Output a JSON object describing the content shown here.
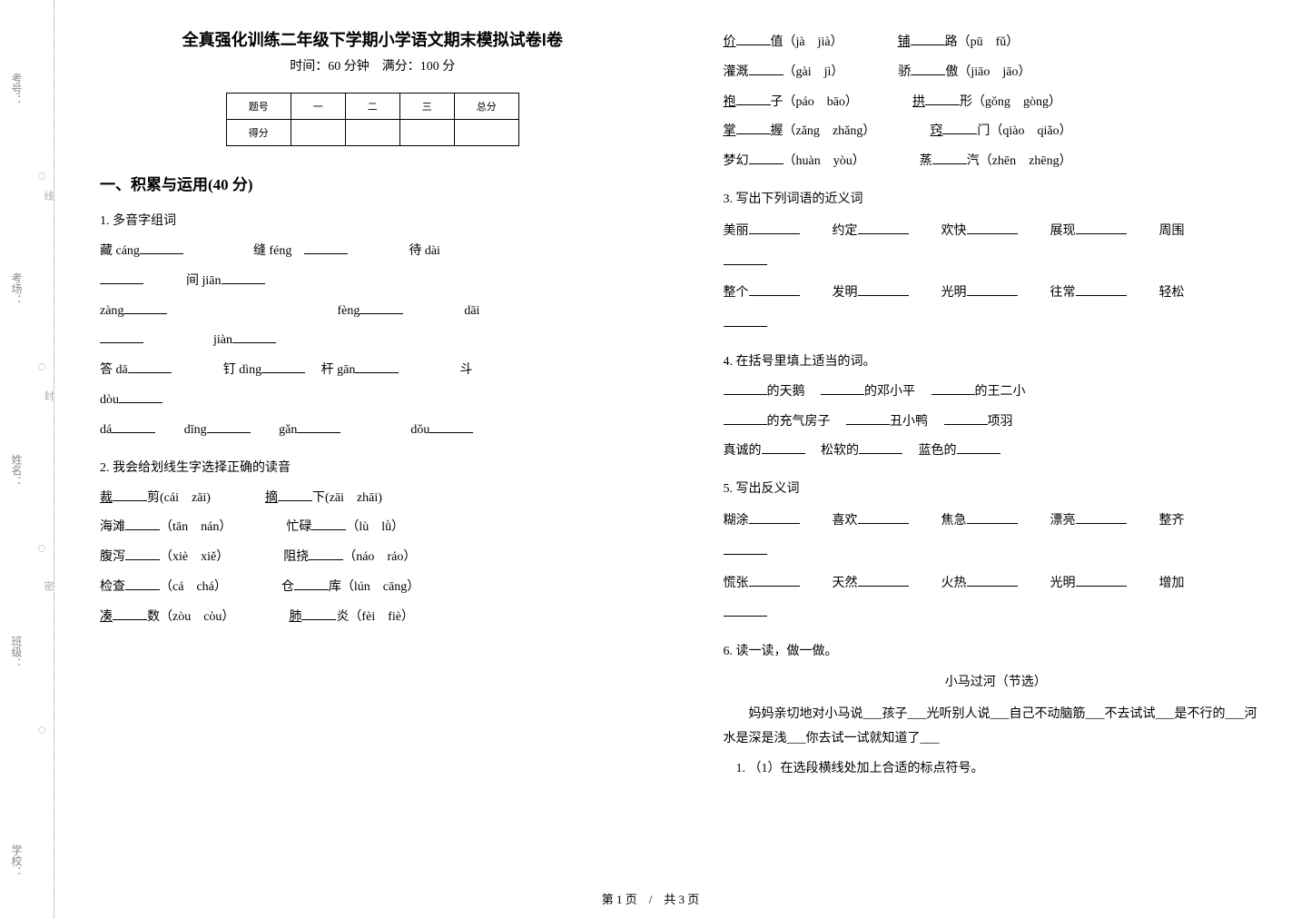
{
  "gutter": {
    "labels": [
      "考号：",
      "考场：",
      "姓名：",
      "班级：",
      "学校："
    ],
    "line_segments": [
      "线",
      "封",
      "密"
    ]
  },
  "header": {
    "title": "全真强化训练二年级下学期小学语文期末模拟试卷Ⅰ卷",
    "subtitle": "时间：60 分钟　满分：100 分"
  },
  "score_table": {
    "headers": [
      "题号",
      "一",
      "二",
      "三",
      "总分"
    ],
    "row2": "得分"
  },
  "section1": {
    "heading": "一、积累与运用(40 分)",
    "q1": {
      "label": "1. 多音字组词",
      "rows": [
        [
          "藏 cáng",
          "缝 féng",
          "待 dài"
        ],
        [
          "间 jiān"
        ],
        [
          "zàng",
          "fèng",
          "dāi"
        ],
        [
          "jiàn"
        ],
        [
          "答 dā",
          "钉 dìng",
          "杆 gān",
          "斗"
        ],
        [
          "dòu"
        ],
        [
          "dá",
          "dīng",
          "gǎn",
          "dǒu"
        ]
      ]
    },
    "q2": {
      "label": "2. 我会给划线生字选择正确的读音",
      "items": [
        {
          "l1": "裁",
          "l2": "剪(cái",
          "l3": "zāi)",
          "r1": "摘",
          "r2": "下(zāi",
          "r3": "zhāi)"
        },
        {
          "l1": "海滩",
          "l2": "（tān",
          "l3": "nán）",
          "r1": "忙碌",
          "r2": "（lù",
          "r3": "lǜ）"
        },
        {
          "l1": "腹泻",
          "l2": "（xiè",
          "l3": "xiě）",
          "r1": "阻挠",
          "r2": "（náo",
          "r3": "ráo）"
        },
        {
          "l1": "检查",
          "l2": "（cá",
          "l3": "chá）",
          "r1": "仓",
          "r2": "库（lún",
          "r3": "cāng）"
        },
        {
          "l1": "凑",
          "l2": "数（zòu",
          "l3": "còu）",
          "r1": "肺",
          "r2": "炎（fèi",
          "r3": "fiè）"
        }
      ]
    },
    "q2b": {
      "items": [
        {
          "l1": "价",
          "l2": "值（jà",
          "l3": "jià）",
          "r1": "铺",
          "r2": "路（pū",
          "r3": "fǔ）"
        },
        {
          "l1": "灌溉",
          "l2": "（gài",
          "l3": "jì）",
          "r1": "骄",
          "r2": "傲（jiāo",
          "r3": "jāo）"
        },
        {
          "l1": "袍",
          "l2": "子（páo",
          "l3": "bāo）",
          "r1": "拱",
          "r2": "形（gǒng",
          "r3": "gòng）"
        },
        {
          "l1": "掌",
          "l2": "握（zǎng",
          "l3": "zhǎng）",
          "r1": "窍",
          "r2": "门（qiào",
          "r3": "qiǎo）"
        },
        {
          "l1": "梦幻",
          "l2": "（huàn",
          "l3": "yòu）",
          "r1": "蒸",
          "r2": "汽（zhēn",
          "r3": "zhēng）"
        }
      ]
    },
    "q3": {
      "label": "3. 写出下列词语的近义词",
      "row1": [
        "美丽",
        "约定",
        "欢快",
        "展现",
        "周围"
      ],
      "row2": [
        "整个",
        "发明",
        "光明",
        "往常",
        "轻松"
      ]
    },
    "q4": {
      "label": "4. 在括号里填上适当的词。",
      "row1": [
        "的天鹅",
        "的邓小平",
        "的王二小"
      ],
      "row2": [
        "的充气房子",
        "丑小鸭",
        "项羽"
      ],
      "row3": [
        "真诚的",
        "松软的",
        "蓝色的"
      ]
    },
    "q5": {
      "label": "5. 写出反义词",
      "row1": [
        "糊涂",
        "喜欢",
        "焦急",
        "漂亮",
        "整齐"
      ],
      "row2": [
        "慌张",
        "天然",
        "火热",
        "光明",
        "增加"
      ]
    },
    "q6": {
      "label": "6. 读一读，做一做。",
      "subtitle": "小马过河（节选）",
      "para": "妈妈亲切地对小马说___孩子___光听别人说___自己不动脑筋___不去试试___是不行的___河水是深是浅___你去试一试就知道了___",
      "sub1": "（1）在选段横线处加上合适的标点符号。"
    }
  },
  "footer": "第 1 页　/　共 3 页"
}
